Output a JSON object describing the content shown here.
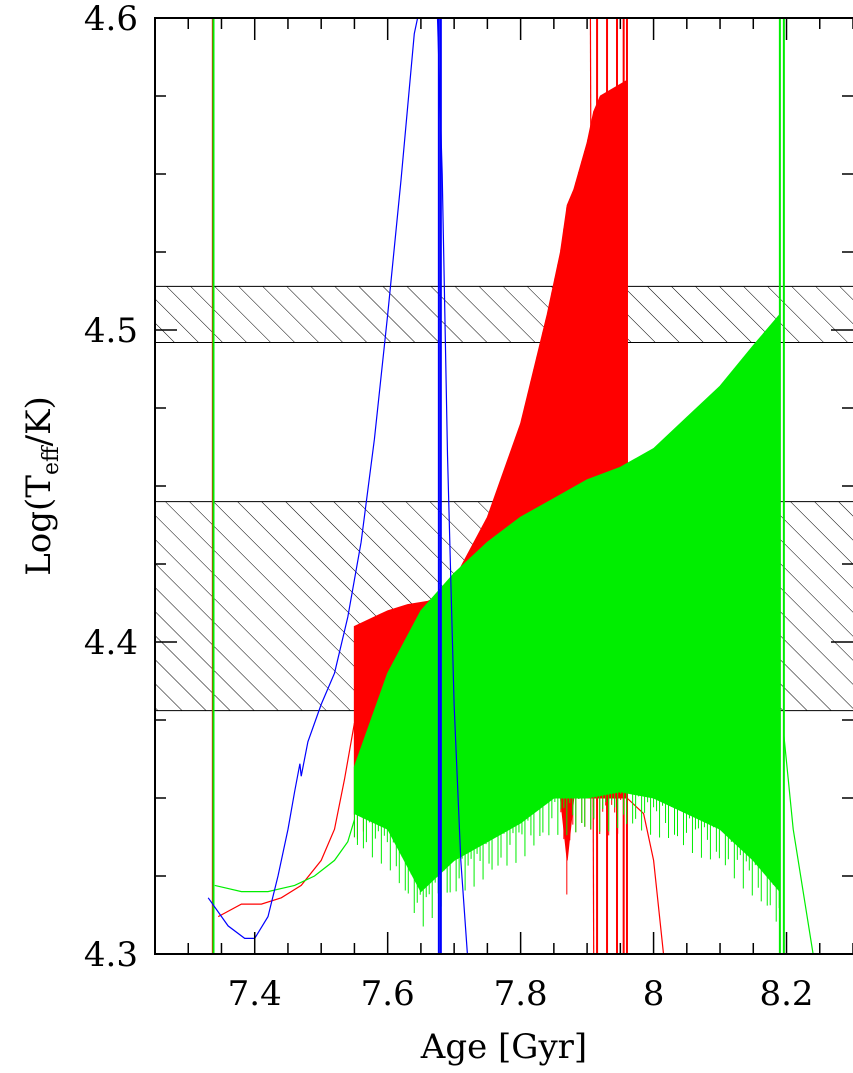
{
  "chart_data": {
    "type": "line",
    "title": "",
    "xlabel": "Age [Gyr]",
    "ylabel": {
      "main": "Log(T",
      "subscript": "eff",
      "tail": "/K)"
    },
    "xlim": [
      7.25,
      8.3
    ],
    "ylim": [
      4.3,
      4.6
    ],
    "x_ticks": [
      {
        "value": 7.4,
        "label": "7.4"
      },
      {
        "value": 7.6,
        "label": "7.6"
      },
      {
        "value": 7.8,
        "label": "7.8"
      },
      {
        "value": 8.0,
        "label": "8"
      },
      {
        "value": 8.2,
        "label": "8.2"
      }
    ],
    "y_ticks": [
      {
        "value": 4.3,
        "label": "4.3"
      },
      {
        "value": 4.4,
        "label": "4.4"
      },
      {
        "value": 4.5,
        "label": "4.5"
      },
      {
        "value": 4.6,
        "label": "4.6"
      }
    ],
    "x_minor_step": 0.05,
    "y_minor_step": 0.025,
    "grid": false,
    "shaded_bands": [
      {
        "ymin": 4.496,
        "ymax": 4.514,
        "pattern": "hatched"
      },
      {
        "ymin": 4.378,
        "ymax": 4.445,
        "pattern": "hatched"
      }
    ],
    "series": [
      {
        "color": "#0000ff",
        "thin_path": [
          [
            7.33,
            4.318
          ],
          [
            7.36,
            4.309
          ],
          [
            7.385,
            4.305
          ],
          [
            7.4,
            4.305
          ],
          [
            7.42,
            4.312
          ],
          [
            7.435,
            4.325
          ],
          [
            7.45,
            4.34
          ],
          [
            7.46,
            4.352
          ],
          [
            7.468,
            4.361
          ],
          [
            7.47,
            4.357
          ],
          [
            7.48,
            4.368
          ],
          [
            7.5,
            4.38
          ],
          [
            7.52,
            4.39
          ],
          [
            7.54,
            4.408
          ],
          [
            7.56,
            4.432
          ],
          [
            7.58,
            4.465
          ],
          [
            7.6,
            4.505
          ],
          [
            7.62,
            4.548
          ],
          [
            7.64,
            4.595
          ],
          [
            7.645,
            4.6
          ]
        ],
        "thin_path_2": [
          [
            7.675,
            4.6
          ],
          [
            7.682,
            4.55
          ],
          [
            7.69,
            4.46
          ],
          [
            7.7,
            4.38
          ],
          [
            7.71,
            4.33
          ],
          [
            7.72,
            4.3
          ]
        ],
        "vertical_lines": [
          7.677,
          7.68
        ]
      },
      {
        "color": "#ff0000",
        "thin_path": [
          [
            7.345,
            4.312
          ],
          [
            7.38,
            4.316
          ],
          [
            7.41,
            4.316
          ],
          [
            7.44,
            4.318
          ],
          [
            7.47,
            4.322
          ],
          [
            7.5,
            4.33
          ],
          [
            7.52,
            4.34
          ],
          [
            7.535,
            4.356
          ],
          [
            7.55,
            4.374
          ]
        ],
        "envelope": {
          "x": [
            7.55,
            7.6,
            7.63,
            7.66,
            7.68,
            7.7,
            7.75,
            7.8,
            7.84,
            7.86,
            7.87,
            7.88,
            7.9,
            7.91,
            7.92,
            7.96
          ],
          "upper": [
            4.405,
            4.41,
            4.412,
            4.413,
            4.415,
            4.42,
            4.44,
            4.47,
            4.505,
            4.525,
            4.54,
            4.545,
            4.56,
            4.57,
            4.575,
            4.58
          ],
          "lower": [
            4.345,
            4.36,
            4.37,
            4.372,
            4.375,
            4.38,
            4.39,
            4.405,
            4.42,
            4.35,
            4.33,
            4.35,
            4.35,
            4.35,
            4.35,
            4.35
          ]
        },
        "vertical_lines": [
          7.337,
          7.915,
          7.93,
          7.945,
          7.955,
          7.96
        ],
        "thin_path_2": [
          [
            7.96,
            4.35
          ],
          [
            7.985,
            4.345
          ],
          [
            8.0,
            4.33
          ],
          [
            8.015,
            4.3
          ]
        ],
        "thin_path_3": [
          [
            7.905,
            4.6
          ],
          [
            7.91,
            4.3
          ]
        ]
      },
      {
        "color": "#00ee00",
        "thin_path": [
          [
            7.34,
            4.322
          ],
          [
            7.38,
            4.32
          ],
          [
            7.42,
            4.32
          ],
          [
            7.46,
            4.322
          ],
          [
            7.49,
            4.325
          ],
          [
            7.52,
            4.33
          ],
          [
            7.54,
            4.336
          ],
          [
            7.55,
            4.343
          ]
        ],
        "envelope": {
          "x": [
            7.55,
            7.6,
            7.65,
            7.7,
            7.75,
            7.8,
            7.85,
            7.9,
            7.95,
            8.0,
            8.05,
            8.1,
            8.15,
            8.19
          ],
          "upper": [
            4.36,
            4.39,
            4.41,
            4.422,
            4.432,
            4.44,
            4.446,
            4.452,
            4.456,
            4.462,
            4.472,
            4.482,
            4.495,
            4.505
          ],
          "lower": [
            4.345,
            4.34,
            4.32,
            4.33,
            4.336,
            4.342,
            4.35,
            4.35,
            4.352,
            4.35,
            4.345,
            4.34,
            4.33,
            4.32
          ]
        },
        "vertical_lines": [
          7.338,
          8.19,
          8.196
        ],
        "thin_path_2": [
          [
            8.196,
            4.37
          ],
          [
            8.21,
            4.34
          ],
          [
            8.24,
            4.3
          ]
        ]
      }
    ]
  }
}
